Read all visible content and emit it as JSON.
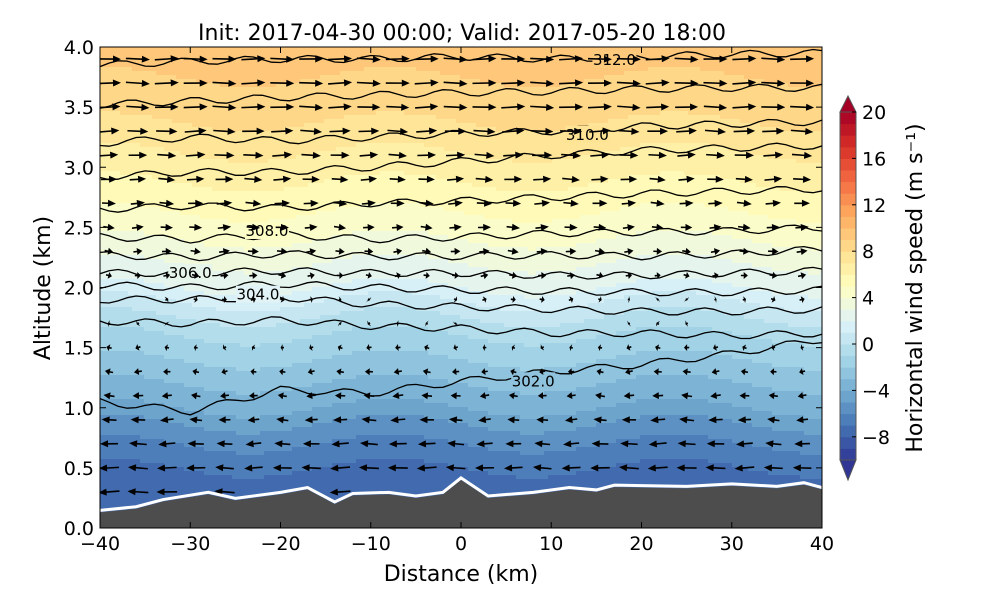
{
  "chart_data": {
    "type": "heatmap",
    "title": "Init: 2017-04-30 00:00; Valid: 2017-05-20 18:00",
    "xlabel": "Distance (km)",
    "ylabel": "Altitude (km)",
    "xlim": [
      -40,
      40
    ],
    "ylim": [
      0,
      4
    ],
    "xticks": [
      -40,
      -30,
      -20,
      -10,
      0,
      10,
      20,
      30,
      40
    ],
    "xtick_labels": [
      "−40",
      "−30",
      "−20",
      "−10",
      "0",
      "10",
      "20",
      "30",
      "40"
    ],
    "yticks": [
      0,
      0.5,
      1,
      1.5,
      2,
      2.5,
      3,
      3.5,
      4
    ],
    "ytick_labels": [
      "0.0",
      "0.5",
      "1.0",
      "1.5",
      "2.0",
      "2.5",
      "3.0",
      "3.5",
      "4.0"
    ],
    "colorbar": {
      "label": "Horizontal wind speed (m s⁻¹)",
      "range": [
        -10,
        20
      ],
      "ticks": [
        20,
        16,
        12,
        8,
        4,
        0,
        -4,
        -8
      ],
      "tick_labels": [
        "20",
        "16",
        "12",
        "8",
        "4",
        "0",
        "−4",
        "−8"
      ],
      "extend": "both",
      "colormap": [
        "#313695",
        "#4575b4",
        "#74add1",
        "#abd9e9",
        "#e0f3f8",
        "#ffffbf",
        "#fee090",
        "#fdae61",
        "#f46d43",
        "#d73027",
        "#a50026"
      ]
    },
    "wind_profile": {
      "altitude_km": [
        0.2,
        0.5,
        0.8,
        1.0,
        1.3,
        1.6,
        1.8,
        2.0,
        2.5,
        3.0,
        3.5,
        4.0
      ],
      "speed_ms": [
        -7.5,
        -7,
        -5.5,
        -4,
        -2.5,
        -1,
        0.3,
        2,
        4.5,
        6.5,
        8.5,
        9.5
      ]
    },
    "terrain": {
      "x_km": [
        -40,
        -36,
        -33,
        -28,
        -25,
        -20,
        -17,
        -14,
        -12,
        -8,
        -5,
        -2,
        0,
        3,
        8,
        12,
        15,
        17,
        25,
        30,
        35,
        38,
        40
      ],
      "height_km": [
        0.13,
        0.16,
        0.22,
        0.28,
        0.23,
        0.28,
        0.32,
        0.2,
        0.27,
        0.28,
        0.25,
        0.28,
        0.4,
        0.25,
        0.28,
        0.32,
        0.3,
        0.34,
        0.33,
        0.35,
        0.33,
        0.36,
        0.32
      ]
    },
    "theta_contours": {
      "x_km": [
        -40,
        -30,
        -20,
        -10,
        0,
        10,
        20,
        30,
        40
      ],
      "lines": [
        {
          "level": 302,
          "alt_km": [
            1.05,
            0.97,
            1.15,
            1.12,
            1.22,
            1.3,
            1.36,
            1.45,
            1.57
          ]
        },
        {
          "level": 303,
          "alt_km": [
            1.72,
            1.7,
            1.73,
            1.68,
            1.66,
            1.62,
            1.62,
            1.6,
            1.62
          ]
        },
        {
          "level": 304,
          "alt_km": [
            1.9,
            1.9,
            1.92,
            1.86,
            1.84,
            1.82,
            1.8,
            1.8,
            1.82
          ]
        },
        {
          "level": 305,
          "alt_km": [
            2.02,
            2.0,
            2.03,
            2.0,
            1.98,
            1.97,
            1.96,
            1.96,
            1.98
          ]
        },
        {
          "level": 306,
          "alt_km": [
            2.12,
            2.12,
            2.14,
            2.12,
            2.12,
            2.1,
            2.1,
            2.12,
            2.14
          ]
        },
        {
          "level": 307,
          "alt_km": [
            2.27,
            2.25,
            2.28,
            2.26,
            2.26,
            2.27,
            2.26,
            2.28,
            2.32
          ]
        },
        {
          "level": 308,
          "alt_km": [
            2.42,
            2.4,
            2.44,
            2.4,
            2.42,
            2.45,
            2.46,
            2.47,
            2.5
          ]
        },
        {
          "level": 309,
          "alt_km": [
            2.65,
            2.68,
            2.66,
            2.7,
            2.72,
            2.75,
            2.78,
            2.8,
            2.82
          ]
        },
        {
          "level": 309.5,
          "alt_km": [
            2.92,
            2.96,
            2.96,
            3.0,
            3.05,
            3.1,
            3.14,
            3.16,
            3.18
          ]
        },
        {
          "level": 310,
          "alt_km": [
            3.2,
            3.25,
            3.22,
            3.25,
            3.28,
            3.3,
            3.34,
            3.36,
            3.38
          ]
        },
        {
          "level": 311,
          "alt_km": [
            3.52,
            3.55,
            3.58,
            3.6,
            3.62,
            3.63,
            3.65,
            3.66,
            3.66
          ]
        },
        {
          "level": 312,
          "alt_km": [
            3.85,
            3.88,
            3.9,
            3.9,
            3.92,
            3.9,
            3.92,
            3.94,
            3.95
          ]
        }
      ],
      "labels": [
        {
          "text": "312.0",
          "x": 17,
          "y": 3.89
        },
        {
          "text": "310.0",
          "x": 14,
          "y": 3.27
        },
        {
          "text": "308.0",
          "x": -21.5,
          "y": 2.47
        },
        {
          "text": "306.0",
          "x": -30,
          "y": 2.12
        },
        {
          "text": "304.0",
          "x": -22.5,
          "y": 1.94
        },
        {
          "text": "302.0",
          "x": 8,
          "y": 1.22
        }
      ]
    }
  }
}
